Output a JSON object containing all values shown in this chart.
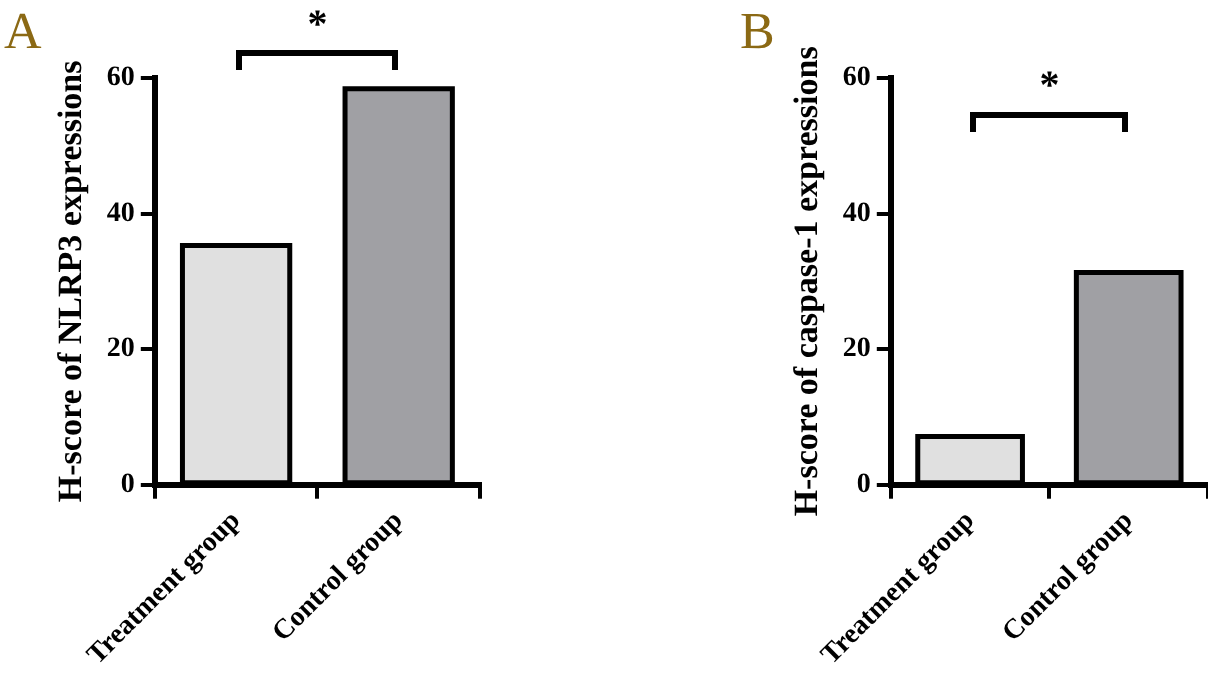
{
  "chart_data": [
    {
      "type": "bar",
      "title": "A",
      "ylabel": "H-score of NLRP3 expressions",
      "categories": [
        "Treatment group",
        "Control group"
      ],
      "values": [
        35.3,
        58.4
      ],
      "colors": [
        "#e0e0e0",
        "#a0a0a4"
      ],
      "ylim": [
        0,
        60
      ],
      "yticks": [
        0,
        20,
        40,
        60
      ],
      "grid": false,
      "legend": false,
      "annotations": [
        "*"
      ]
    },
    {
      "type": "bar",
      "title": "B",
      "ylabel": "H-score of caspase-1 expressions",
      "categories": [
        "Treatment group",
        "Control group"
      ],
      "values": [
        7.1,
        31.3
      ],
      "colors": [
        "#e0e0e0",
        "#a0a0a4"
      ],
      "ylim": [
        0,
        60
      ],
      "yticks": [
        0,
        20,
        40,
        60
      ],
      "grid": false,
      "legend": false,
      "annotations": [
        "*"
      ]
    }
  ]
}
